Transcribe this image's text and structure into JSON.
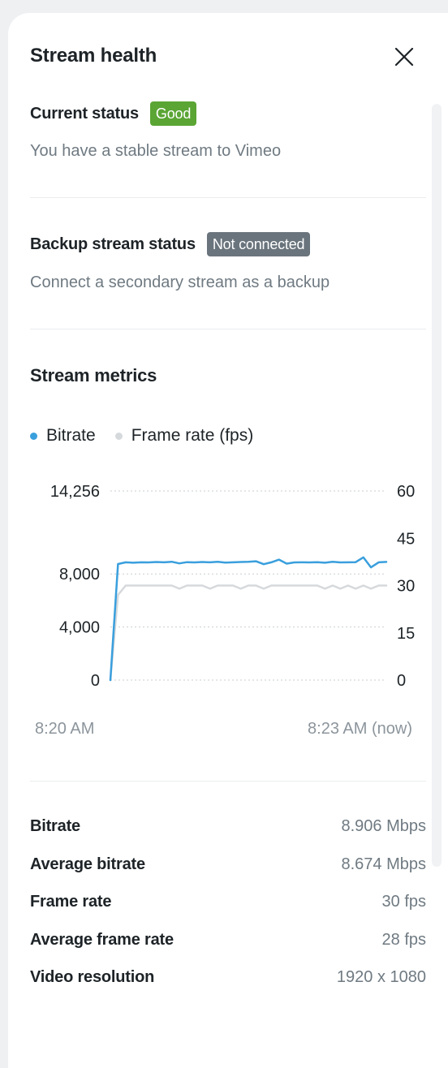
{
  "header": {
    "title": "Stream health"
  },
  "current_status": {
    "label": "Current status",
    "badge": "Good",
    "badge_color": "#5aa534",
    "description": "You have a stable stream to Vimeo"
  },
  "backup_status": {
    "label": "Backup stream status",
    "badge": "Not connected",
    "badge_color": "#6a747c",
    "description": "Connect a secondary stream as a backup"
  },
  "metrics": {
    "title": "Stream metrics"
  },
  "chart_data": {
    "type": "line",
    "legend_position": "top-left",
    "grid": true,
    "x_labels": [
      "8:20 AM",
      "8:23 AM (now)"
    ],
    "y_left": {
      "ticks": [
        "14,256",
        "8,000",
        "4,000",
        "0"
      ],
      "tick_values": [
        14256,
        8000,
        4000,
        0
      ],
      "range": [
        0,
        14256
      ]
    },
    "y_right": {
      "ticks": [
        "60",
        "45",
        "30",
        "15",
        "0"
      ],
      "tick_values": [
        60,
        45,
        30,
        15,
        0
      ],
      "range": [
        0,
        60
      ]
    },
    "series": [
      {
        "name": "Bitrate",
        "color": "#3a9fdd",
        "axis": "left",
        "values": [
          0,
          8750,
          8880,
          8850,
          8880,
          8870,
          8900,
          8880,
          8920,
          8800,
          8890,
          8870,
          8900,
          8880,
          8920,
          8860,
          8880,
          8900,
          8920,
          8960,
          8740,
          8880,
          9080,
          8780,
          8870,
          8880,
          8870,
          8890,
          8850,
          8920,
          8870,
          8880,
          8890,
          9250,
          8500,
          8880,
          8906
        ]
      },
      {
        "name": "Frame rate (fps)",
        "color": "#d6d9dc",
        "axis": "right",
        "values": [
          0,
          27,
          30,
          30,
          30,
          30,
          30,
          30,
          30,
          29,
          30,
          30,
          30,
          29,
          30,
          30,
          30,
          29,
          30,
          30,
          29,
          30,
          30,
          30,
          30,
          30,
          30,
          30,
          29,
          30,
          29,
          30,
          29,
          30,
          29,
          30,
          30
        ]
      }
    ]
  },
  "stats": [
    {
      "label": "Bitrate",
      "value": "8.906 Mbps"
    },
    {
      "label": "Average bitrate",
      "value": "8.674 Mbps"
    },
    {
      "label": "Frame rate",
      "value": "30 fps"
    },
    {
      "label": "Average frame rate",
      "value": "28 fps"
    },
    {
      "label": "Video resolution",
      "value": "1920 x 1080"
    }
  ]
}
